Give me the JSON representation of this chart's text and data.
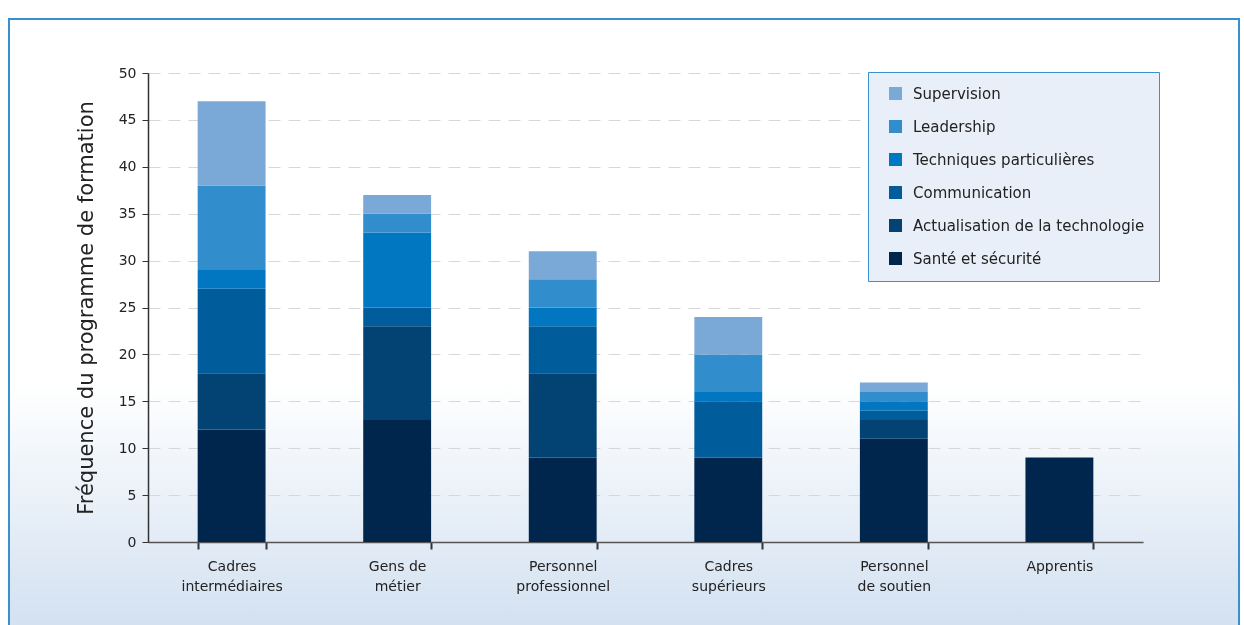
{
  "chart_data": {
    "type": "bar",
    "stacked": true,
    "ylabel": "Fréquence du programme de formation",
    "categories": [
      "Cadres\nintermédiaires",
      "Gens de\nmétier",
      "Personnel\nprofessionnel",
      "Cadres\nsupérieurs",
      "Personnel\nde soutien",
      "Apprentis"
    ],
    "series": [
      {
        "name": "Santé et sécurité",
        "color": "#00264d",
        "values": [
          12,
          13,
          9,
          9,
          11,
          9
        ]
      },
      {
        "name": "Actualisation de la technologie",
        "color": "#024373",
        "values": [
          6,
          10,
          9,
          0,
          2,
          0
        ]
      },
      {
        "name": "Communication",
        "color": "#005c9b",
        "values": [
          9,
          2,
          5,
          6,
          1,
          0
        ]
      },
      {
        "name": "Techniques particulières",
        "color": "#0077c0",
        "values": [
          2,
          8,
          2,
          1,
          1,
          0
        ]
      },
      {
        "name": "Leadership",
        "color": "#318dcb",
        "values": [
          9,
          2,
          3,
          4,
          1,
          0
        ]
      },
      {
        "name": "Supervision",
        "color": "#7aa9d8",
        "values": [
          9,
          2,
          3,
          4,
          1,
          0
        ]
      }
    ],
    "ylim": [
      0,
      50
    ],
    "yticks": [
      0,
      5,
      10,
      15,
      20,
      25,
      30,
      35,
      40,
      45,
      50
    ],
    "grid": "y",
    "legend": "top right"
  }
}
